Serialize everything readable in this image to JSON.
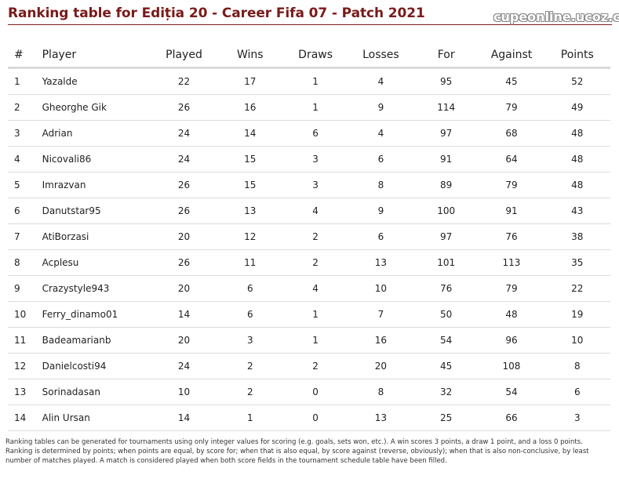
{
  "header": {
    "title": "Ranking table for Ediția 20 - Career Fifa 07 - Patch 2021",
    "site": "cupeonline.ucoz.club"
  },
  "table": {
    "columns": [
      "#",
      "Player",
      "Played",
      "Wins",
      "Draws",
      "Losses",
      "For",
      "Against",
      "Points"
    ],
    "rows": [
      [
        "1",
        "Yazalde",
        "22",
        "17",
        "1",
        "4",
        "95",
        "45",
        "52"
      ],
      [
        "2",
        "Gheorghe Gik",
        "26",
        "16",
        "1",
        "9",
        "114",
        "79",
        "49"
      ],
      [
        "3",
        "Adrian",
        "24",
        "14",
        "6",
        "4",
        "97",
        "68",
        "48"
      ],
      [
        "4",
        "Nicovali86",
        "24",
        "15",
        "3",
        "6",
        "91",
        "64",
        "48"
      ],
      [
        "5",
        "Imrazvan",
        "26",
        "15",
        "3",
        "8",
        "89",
        "79",
        "48"
      ],
      [
        "6",
        "Danutstar95",
        "26",
        "13",
        "4",
        "9",
        "100",
        "91",
        "43"
      ],
      [
        "7",
        "AtiBorzasi",
        "20",
        "12",
        "2",
        "6",
        "97",
        "76",
        "38"
      ],
      [
        "8",
        "Acplesu",
        "26",
        "11",
        "2",
        "13",
        "101",
        "113",
        "35"
      ],
      [
        "9",
        "Crazystyle943",
        "20",
        "6",
        "4",
        "10",
        "76",
        "79",
        "22"
      ],
      [
        "10",
        "Ferry_dinamo01",
        "14",
        "6",
        "1",
        "7",
        "50",
        "48",
        "19"
      ],
      [
        "11",
        "Badeamarianb",
        "20",
        "3",
        "1",
        "16",
        "54",
        "96",
        "10"
      ],
      [
        "12",
        "Danielcosti94",
        "24",
        "2",
        "2",
        "20",
        "45",
        "108",
        "8"
      ],
      [
        "13",
        "Sorinadasan",
        "10",
        "2",
        "0",
        "8",
        "32",
        "54",
        "6"
      ],
      [
        "14",
        "Alin Ursan",
        "14",
        "1",
        "0",
        "13",
        "25",
        "66",
        "3"
      ]
    ]
  },
  "footnote": "Ranking tables can be generated for tournaments using only integer values for scoring (e.g. goals, sets won, etc.). A win scores 3 points, a draw 1 point, and a loss 0 points. Ranking is determined by points; when points are equal, by score for; when that is also equal, by score against (reverse, obviously); when that is also non-conclusive, by least number of matches played. A match is considered played when both score fields in the tournament schedule table have been filled."
}
